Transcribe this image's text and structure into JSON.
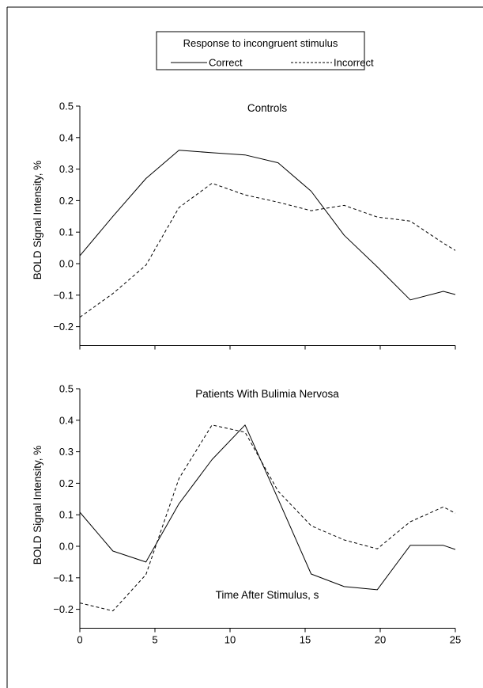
{
  "legend": {
    "title": "Response to incongruent stimulus",
    "entries": [
      {
        "label": "Correct",
        "style": "solid"
      },
      {
        "label": "Incorrect",
        "style": "dashed"
      }
    ]
  },
  "chart_data": [
    {
      "type": "line",
      "title": "Controls",
      "xlabel": "",
      "ylabel": "BOLD Signal Intensity, %",
      "xlim": [
        0,
        25
      ],
      "ylim": [
        -0.26,
        0.5
      ],
      "xticks": [
        0,
        5,
        10,
        15,
        20,
        25
      ],
      "xtick_labels_shown": false,
      "yticks": [
        {
          "value": 0.5,
          "label": "0.5"
        },
        {
          "value": 0.4,
          "label": "0.4"
        },
        {
          "value": 0.3,
          "label": "0.3"
        },
        {
          "value": 0.2,
          "label": "0.2"
        },
        {
          "value": 0.1,
          "label": "0.1"
        },
        {
          "value": 0.0,
          "label": "0.0"
        },
        {
          "value": -0.1,
          "label": "−0.1"
        },
        {
          "value": -0.2,
          "label": "−0.2"
        }
      ],
      "grid": false,
      "series": [
        {
          "name": "Correct",
          "style": "solid",
          "x": [
            0,
            2.2,
            4.4,
            6.6,
            8.8,
            11.0,
            13.2,
            15.4,
            17.6,
            19.8,
            22.0,
            24.2,
            25
          ],
          "y": [
            0.025,
            0.15,
            0.27,
            0.36,
            0.352,
            0.345,
            0.32,
            0.23,
            0.09,
            -0.01,
            -0.115,
            -0.088,
            -0.098
          ]
        },
        {
          "name": "Incorrect",
          "style": "dashed",
          "x": [
            0,
            2.2,
            4.4,
            6.6,
            8.8,
            11.0,
            13.2,
            15.4,
            17.6,
            19.8,
            22.0,
            24.2,
            25
          ],
          "y": [
            -0.17,
            -0.095,
            -0.005,
            0.178,
            0.255,
            0.218,
            0.195,
            0.168,
            0.185,
            0.148,
            0.135,
            0.065,
            0.042
          ]
        }
      ]
    },
    {
      "type": "line",
      "title": "Patients With Bulimia Nervosa",
      "xlabel": "Time After Stimulus, s",
      "ylabel": "BOLD Signal Intensity, %",
      "xlim": [
        0,
        25
      ],
      "ylim": [
        -0.26,
        0.5
      ],
      "xticks": [
        0,
        5,
        10,
        15,
        20,
        25
      ],
      "xtick_labels": [
        "0",
        "5",
        "10",
        "15",
        "20",
        "25"
      ],
      "yticks": [
        {
          "value": 0.5,
          "label": "0.5"
        },
        {
          "value": 0.4,
          "label": "0.4"
        },
        {
          "value": 0.3,
          "label": "0.3"
        },
        {
          "value": 0.2,
          "label": "0.2"
        },
        {
          "value": 0.1,
          "label": "0.1"
        },
        {
          "value": 0.0,
          "label": "0.0"
        },
        {
          "value": -0.1,
          "label": "−0.1"
        },
        {
          "value": -0.2,
          "label": "−0.2"
        }
      ],
      "grid": false,
      "series": [
        {
          "name": "Correct",
          "style": "solid",
          "x": [
            0,
            2.2,
            4.4,
            6.6,
            8.8,
            11.0,
            13.2,
            15.4,
            17.6,
            19.8,
            22.0,
            24.2,
            25
          ],
          "y": [
            0.108,
            -0.015,
            -0.05,
            0.135,
            0.275,
            0.385,
            0.15,
            -0.088,
            -0.128,
            -0.138,
            0.003,
            0.003,
            -0.01
          ]
        },
        {
          "name": "Incorrect",
          "style": "dashed",
          "x": [
            0,
            2.2,
            4.4,
            6.6,
            8.8,
            11.0,
            13.2,
            15.4,
            17.6,
            19.8,
            22.0,
            24.2,
            25
          ],
          "y": [
            -0.18,
            -0.205,
            -0.09,
            0.215,
            0.385,
            0.362,
            0.175,
            0.065,
            0.02,
            -0.008,
            0.078,
            0.125,
            0.105
          ]
        }
      ]
    }
  ]
}
